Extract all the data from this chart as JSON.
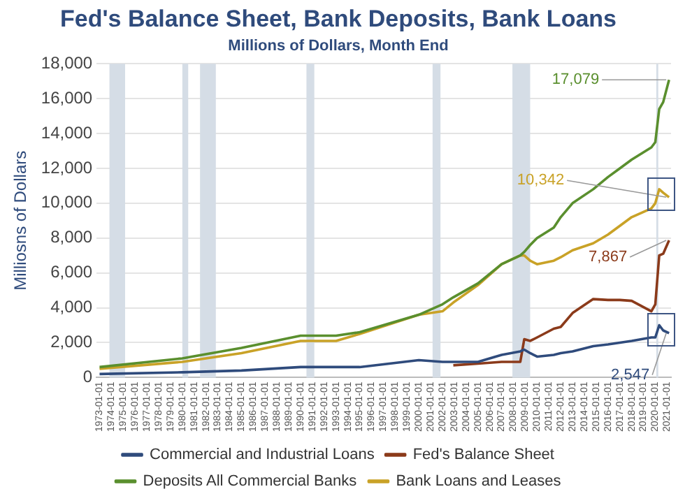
{
  "chart_data": {
    "type": "line",
    "title": "Fed's Balance Sheet, Bank Deposits, Bank Loans",
    "subtitle": "Millions of Dollars, Month End",
    "ylabel": "Milliosns of Dollars",
    "x": [
      "1973-01-01",
      "1980-01-01",
      "1985-01-01",
      "1990-01-01",
      "1993-01-01",
      "1995-01-01",
      "2000-01-01",
      "2002-01-01",
      "2002-12-01",
      "2005-01-01",
      "2007-01-01",
      "2008-08-01",
      "2008-12-01",
      "2009-06-01",
      "2010-01-01",
      "2011-06-01",
      "2012-01-01",
      "2013-01-01",
      "2014-10-01",
      "2016-01-01",
      "2017-01-01",
      "2018-01-01",
      "2019-09-01",
      "2020-01-01",
      "2020-05-01",
      "2020-09-01",
      "2021-03-01"
    ],
    "series": [
      {
        "name": "Commercial and Industrial Loans",
        "color": "#2f4b7c",
        "values": [
          200,
          300,
          400,
          600,
          600,
          600,
          1000,
          900,
          900,
          900,
          1300,
          1500,
          1600,
          1400,
          1200,
          1300,
          1400,
          1500,
          1800,
          1900,
          2000,
          2100,
          2300,
          2300,
          3000,
          2700,
          2547
        ]
      },
      {
        "name": "Fed's Balance Sheet",
        "color": "#8b3a1a",
        "values": [
          null,
          null,
          null,
          null,
          null,
          null,
          null,
          null,
          700,
          800,
          900,
          900,
          2200,
          2100,
          2300,
          2800,
          2900,
          3700,
          4500,
          4450,
          4450,
          4400,
          3800,
          4200,
          7000,
          7100,
          7867
        ]
      },
      {
        "name": "Deposits All Commercial Banks",
        "color": "#5a8f2e",
        "values": [
          600,
          1100,
          1700,
          2400,
          2400,
          2600,
          3600,
          4200,
          4600,
          5400,
          6500,
          7000,
          7200,
          7600,
          8000,
          8600,
          9200,
          10000,
          10800,
          11500,
          12000,
          12500,
          13200,
          13500,
          15400,
          15800,
          17079
        ]
      },
      {
        "name": "Bank Loans and Leases",
        "color": "#c9a227",
        "values": [
          500,
          900,
          1400,
          2100,
          2100,
          2500,
          3600,
          3800,
          4300,
          5300,
          6500,
          7000,
          7000,
          6700,
          6500,
          6700,
          6900,
          7300,
          7700,
          8200,
          8700,
          9200,
          9700,
          10000,
          10800,
          10600,
          10342
        ]
      }
    ],
    "xlim": [
      "1972-10-01",
      "2021-05-01"
    ],
    "xticks": [
      "1973-01-01",
      "1974-01-01",
      "1975-01-01",
      "1976-01-01",
      "1977-01-01",
      "1978-01-01",
      "1979-01-01",
      "1980-01-01",
      "1981-01-01",
      "1982-01-01",
      "1983-01-01",
      "1984-01-01",
      "1985-01-01",
      "1986-01-01",
      "1987-01-01",
      "1988-01-01",
      "1989-01-01",
      "1990-01-01",
      "1991-01-01",
      "1992-01-01",
      "1993-01-01",
      "1994-01-01",
      "1995-01-01",
      "1996-01-01",
      "1997-01-01",
      "1998-01-01",
      "1999-01-01",
      "2000-01-01",
      "2001-01-01",
      "2002-01-01",
      "2003-01-01",
      "2004-01-01",
      "2005-01-01",
      "2006-01-01",
      "2007-01-01",
      "2008-01-01",
      "2009-01-01",
      "2010-01-01",
      "2011-01-01",
      "2012-01-01",
      "2013-01-01",
      "2014-01-01",
      "2015-01-01",
      "2016-01-01",
      "2017-01-01",
      "2018-01-01",
      "2019-01-01",
      "2020-01-01",
      "2021-01-01"
    ],
    "ylim": [
      0,
      18000
    ],
    "yticks": [
      {
        "value": 0,
        "label": "0"
      },
      {
        "value": 2000,
        "label": "2,000"
      },
      {
        "value": 4000,
        "label": "4,000"
      },
      {
        "value": 6000,
        "label": "6,000"
      },
      {
        "value": 8000,
        "label": "8,000"
      },
      {
        "value": 10000,
        "label": "10,000"
      },
      {
        "value": 12000,
        "label": "12,000"
      },
      {
        "value": 14000,
        "label": "14,000"
      },
      {
        "value": 16000,
        "label": "16,000"
      },
      {
        "value": 18000,
        "label": "18,000"
      }
    ],
    "bands": [
      {
        "axis": "x",
        "from": "1973-11-01",
        "to": "1975-03-01",
        "color": "#d5dde6"
      },
      {
        "axis": "x",
        "from": "1980-01-01",
        "to": "1980-07-01",
        "color": "#d5dde6"
      },
      {
        "axis": "x",
        "from": "1981-07-01",
        "to": "1982-11-01",
        "color": "#d5dde6"
      },
      {
        "axis": "x",
        "from": "1990-07-01",
        "to": "1991-03-01",
        "color": "#d5dde6"
      },
      {
        "axis": "x",
        "from": "2001-03-01",
        "to": "2001-11-01",
        "color": "#d5dde6"
      },
      {
        "axis": "x",
        "from": "2007-12-01",
        "to": "2009-06-01",
        "color": "#d5dde6"
      },
      {
        "axis": "x",
        "from": "2020-02-01",
        "to": "2020-04-01",
        "color": "#d5dde6"
      }
    ],
    "annotations": [
      {
        "text": "17,079",
        "x": "2021-03-01",
        "y": 17079
      },
      {
        "text": "10,342",
        "x": "2021-03-01",
        "y": 10342
      },
      {
        "text": "7,867",
        "x": "2021-03-01",
        "y": 7867
      },
      {
        "text": "2,547",
        "x": "2021-03-01",
        "y": 2547
      }
    ],
    "grid": "y",
    "legend": "bottom",
    "marker": "none",
    "line_style": "solid"
  }
}
